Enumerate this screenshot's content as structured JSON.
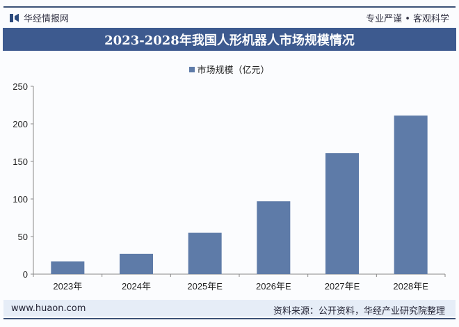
{
  "header": {
    "brand": "华经情报网",
    "slogan": "专业严谨 • 客观科学"
  },
  "chart_data": {
    "type": "bar",
    "title": "2023-2028年我国人形机器人市场规模情况",
    "categories": [
      "2023年",
      "2024年",
      "2025年E",
      "2026年E",
      "2027年E",
      "2028年E"
    ],
    "series": [
      {
        "name": "市场规模（亿元）",
        "values": [
          17,
          27,
          55,
          97,
          161,
          211
        ],
        "color": "#5e7ba8"
      }
    ],
    "ylim": [
      0,
      250
    ],
    "yticks": [
      0,
      50,
      100,
      150,
      200,
      250
    ],
    "grid": false,
    "legend": "top"
  },
  "footer": {
    "url": "www.huaon.com",
    "source": "资料来源：公开资料，华经产业研究院整理"
  },
  "colors": {
    "title_bar": "#3d5a8f",
    "bar": "#5e7ba8",
    "footer_band": "#e6edf7"
  }
}
